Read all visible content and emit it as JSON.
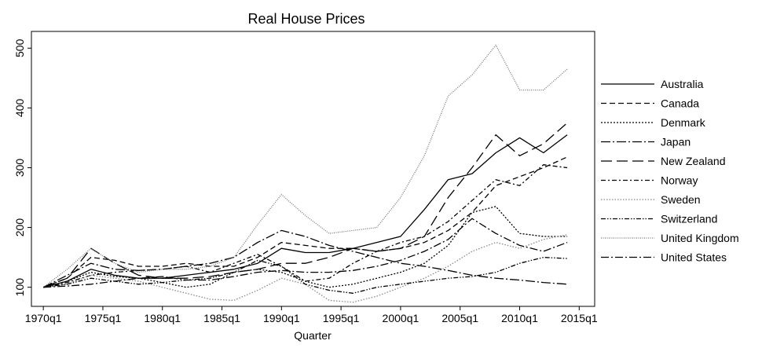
{
  "chart_data": {
    "type": "line",
    "title": "Real House Prices",
    "x_label": "Quarter",
    "x": [
      1970,
      1972,
      1974,
      1976,
      1978,
      1980,
      1982,
      1984,
      1986,
      1988,
      1990,
      1992,
      1994,
      1996,
      1998,
      2000,
      2002,
      2004,
      2006,
      2008,
      2010,
      2012,
      2014
    ],
    "xlim": [
      1969,
      2016.3
    ],
    "xticks": [
      {
        "value": 1970,
        "label": "1970q1"
      },
      {
        "value": 1975,
        "label": "1975q1"
      },
      {
        "value": 1980,
        "label": "1980q1"
      },
      {
        "value": 1985,
        "label": "1985q1"
      },
      {
        "value": 1990,
        "label": "1990q1"
      },
      {
        "value": 1995,
        "label": "1995q1"
      },
      {
        "value": 2000,
        "label": "2000q1"
      },
      {
        "value": 2005,
        "label": "2005q1"
      },
      {
        "value": 2010,
        "label": "2010q1"
      },
      {
        "value": 2015,
        "label": "2015q1"
      }
    ],
    "ylim": [
      68,
      528
    ],
    "yticks": [
      100,
      200,
      300,
      400,
      500
    ],
    "series": [
      {
        "name": "Australia",
        "color": "#000",
        "dash": "none",
        "values": [
          100,
          110,
          130,
          120,
          115,
          115,
          120,
          125,
          130,
          140,
          165,
          158,
          158,
          165,
          175,
          185,
          230,
          280,
          290,
          325,
          350,
          325,
          355
        ]
      },
      {
        "name": "Canada",
        "color": "#000",
        "dash": "7,4",
        "values": [
          100,
          115,
          150,
          145,
          135,
          135,
          140,
          135,
          135,
          150,
          175,
          170,
          165,
          165,
          160,
          165,
          175,
          195,
          225,
          270,
          285,
          300,
          318
        ]
      },
      {
        "name": "Denmark",
        "color": "#000",
        "dash": "2,2",
        "values": [
          100,
          110,
          125,
          118,
          115,
          108,
          100,
          105,
          125,
          130,
          125,
          110,
          100,
          105,
          115,
          125,
          140,
          170,
          225,
          235,
          190,
          185,
          185
        ]
      },
      {
        "name": "Japan",
        "color": "#000",
        "dash": "12,3,2,3",
        "values": [
          100,
          120,
          140,
          130,
          128,
          130,
          135,
          140,
          150,
          175,
          195,
          185,
          170,
          160,
          150,
          140,
          135,
          128,
          120,
          115,
          112,
          108,
          105
        ]
      },
      {
        "name": "New Zealand",
        "color": "#000",
        "dash": "14,6",
        "values": [
          100,
          115,
          165,
          140,
          120,
          115,
          115,
          118,
          125,
          130,
          140,
          140,
          150,
          165,
          160,
          165,
          185,
          250,
          300,
          355,
          320,
          340,
          375
        ]
      },
      {
        "name": "Norway",
        "color": "#000",
        "dash": "6,3,2,3",
        "values": [
          100,
          108,
          120,
          125,
          128,
          130,
          135,
          125,
          140,
          155,
          135,
          110,
          115,
          140,
          160,
          175,
          185,
          210,
          245,
          280,
          270,
          305,
          300
        ]
      },
      {
        "name": "Sweden",
        "color": "#888",
        "dash": "1.5,2",
        "values": [
          100,
          105,
          120,
          115,
          110,
          100,
          90,
          80,
          78,
          95,
          115,
          105,
          78,
          75,
          85,
          100,
          115,
          135,
          160,
          175,
          165,
          180,
          188
        ]
      },
      {
        "name": "Switzerland",
        "color": "#000",
        "dash": "6,2,1.5,2,1.5,2",
        "values": [
          100,
          105,
          115,
          110,
          105,
          108,
          112,
          115,
          125,
          145,
          135,
          105,
          95,
          90,
          100,
          105,
          110,
          115,
          118,
          125,
          140,
          150,
          148
        ]
      },
      {
        "name": "United Kingdom",
        "color": "#777",
        "dash": "1,1.5",
        "values": [
          100,
          130,
          165,
          140,
          125,
          130,
          130,
          135,
          150,
          205,
          255,
          220,
          190,
          195,
          200,
          250,
          320,
          420,
          455,
          505,
          430,
          430,
          465
        ]
      },
      {
        "name": "United States",
        "color": "#000",
        "dash": "10,3,2,3",
        "values": [
          100,
          102,
          105,
          110,
          115,
          118,
          112,
          112,
          118,
          125,
          128,
          125,
          125,
          128,
          135,
          145,
          160,
          180,
          215,
          190,
          170,
          160,
          175
        ]
      }
    ]
  }
}
